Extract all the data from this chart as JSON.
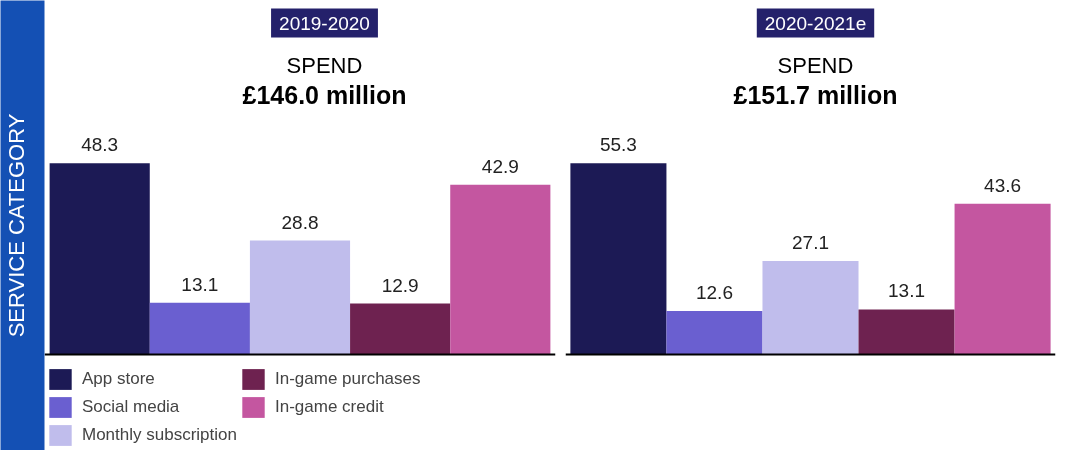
{
  "chart_data": [
    {
      "type": "bar",
      "title": "2019-2020",
      "subtitle": "SPEND",
      "annotations": [
        "£146.0 million"
      ],
      "ylabel": "SERVICE CATEGORY",
      "categories": [
        null
      ],
      "data_labels": true,
      "legend": "bottom",
      "grid": false,
      "tick_labels": false,
      "series": [
        {
          "name": "App store",
          "color": "#1c1a55",
          "values": [
            48.3
          ]
        },
        {
          "name": "Social media",
          "color": "#6a5fd0",
          "values": [
            13.1
          ]
        },
        {
          "name": "Monthly subscription",
          "color": "#c0bdec",
          "values": [
            28.8
          ]
        },
        {
          "name": "In-game purchases",
          "color": "#6e2250",
          "values": [
            12.9
          ]
        },
        {
          "name": "In-game credit",
          "color": "#c456a0",
          "values": [
            42.9
          ]
        }
      ]
    },
    {
      "type": "bar",
      "title": "2020-2021e",
      "subtitle": "SPEND",
      "annotations": [
        "£151.7 million"
      ],
      "categories": [
        null
      ],
      "data_labels": true,
      "grid": false,
      "tick_labels": false,
      "series": [
        {
          "color": "#1c1a55",
          "values": [
            55.3
          ]
        },
        {
          "color": "#6a5fd0",
          "values": [
            12.6
          ]
        },
        {
          "color": "#c0bdec",
          "values": [
            27.1
          ]
        },
        {
          "color": "#6e2250",
          "values": [
            13.1
          ]
        },
        {
          "color": "#c456a0",
          "values": [
            43.6
          ]
        }
      ]
    }
  ]
}
